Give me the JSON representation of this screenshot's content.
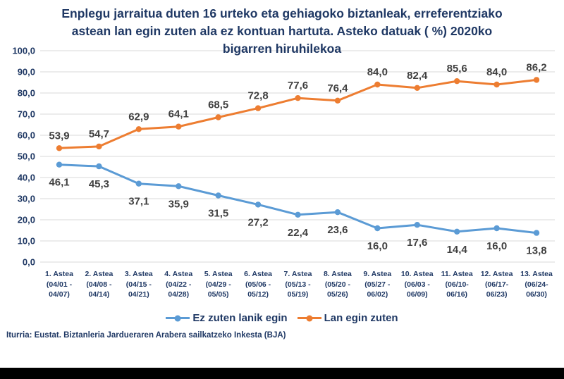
{
  "page": {
    "title_lines": [
      "Enplegu jarraitua duten 16 urteko eta gehiagoko biztanleak, erreferentziako",
      "astean lan egin zuten ala ez kontuan hartuta. Asteko datuak ( %) 2020ko",
      "bigarren hiruhilekoa"
    ],
    "source": "Iturria: Eustat. Biztanleria Jardueraren Arabera sailkatzeko Inkesta (BJA)"
  },
  "colors": {
    "title_text": "#1F3864",
    "axis_text": "#1F3864",
    "data_label_text": "#404040",
    "gridline": "#D9D9D9",
    "series_blue": "#5B9BD5",
    "series_orange": "#ED7D31",
    "bottom_bar": "#000000"
  },
  "chart_data": {
    "type": "line",
    "title": "Enplegu jarraitua duten 16 urteko eta gehiagoko biztanleak, erreferentziako astean lan egin zuten ala ez kontuan hartuta. Asteko datuak ( %) 2020ko bigarren hiruhilekoa",
    "categories": [
      [
        "1. Astea",
        "(04/01 -",
        "04/07)"
      ],
      [
        "2. Astea",
        "(04/08 -",
        "04/14)"
      ],
      [
        "3. Astea",
        "(04/15 -",
        "04/21)"
      ],
      [
        "4. Astea",
        "(04/22 -",
        "04/28)"
      ],
      [
        "5. Astea",
        "(04/29 -",
        "05/05)"
      ],
      [
        "6. Astea",
        "(05/06 -",
        "05/12)"
      ],
      [
        "7. Astea",
        "(05/13 -",
        "05/19)"
      ],
      [
        "8. Astea",
        "(05/20 -",
        "05/26)"
      ],
      [
        "9. Astea",
        "(05/27 -",
        "06/02)"
      ],
      [
        "10. Astea",
        "(06/03 -",
        "06/09)"
      ],
      [
        "11. Astea",
        "(06/10-",
        "06/16)"
      ],
      [
        "12. Astea",
        "(06/17-",
        "06/23)"
      ],
      [
        "13. Astea",
        "(06/24-",
        "06/30)"
      ]
    ],
    "series": [
      {
        "name": "Ez zuten lanik egin",
        "color": "#5B9BD5",
        "label_position": "below",
        "values": [
          46.1,
          45.3,
          37.1,
          35.9,
          31.5,
          27.2,
          22.4,
          23.6,
          16.0,
          17.6,
          14.4,
          16.0,
          13.8
        ]
      },
      {
        "name": "Lan egin zuten",
        "color": "#ED7D31",
        "label_position": "above",
        "values": [
          53.9,
          54.7,
          62.9,
          64.1,
          68.5,
          72.8,
          77.6,
          76.4,
          84.0,
          82.4,
          85.6,
          84.0,
          86.2
        ]
      }
    ],
    "y_ticks": [
      "100,0",
      "90,0",
      "80,0",
      "70,0",
      "60,0",
      "50,0",
      "40,0",
      "30,0",
      "20,0",
      "10,0",
      "0,0"
    ],
    "ylim": [
      0,
      100
    ],
    "grid": true,
    "legend_position": "bottom",
    "data_labels": true,
    "decimal_separator": ","
  }
}
